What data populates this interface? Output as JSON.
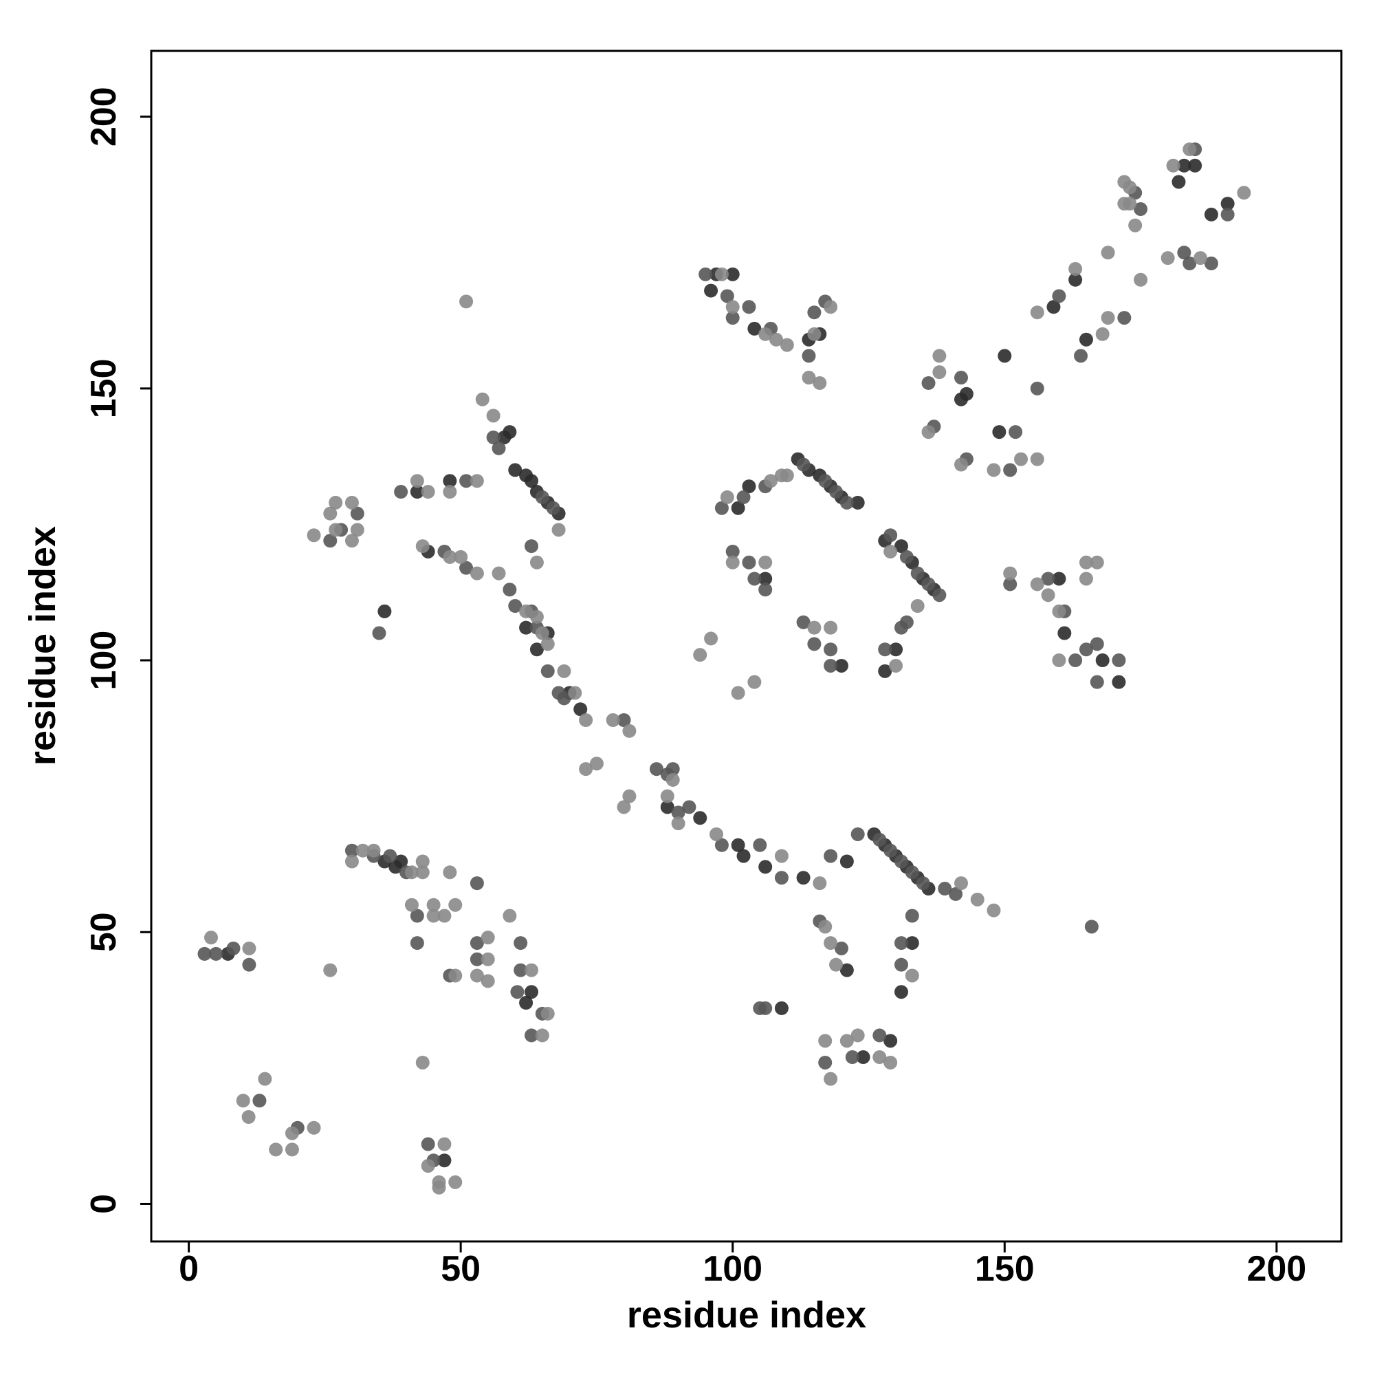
{
  "chart_data": {
    "type": "scatter",
    "xlabel": "residue index",
    "ylabel": "residue index",
    "xlim": [
      -6.9,
      211.9
    ],
    "ylim": [
      -6.9,
      212.1
    ],
    "xticks": [
      0,
      50,
      100,
      150,
      200
    ],
    "yticks": [
      0,
      50,
      100,
      150,
      200
    ],
    "series": [
      {
        "color": "#2b2b2b",
        "x": [
          7.2,
          47,
          63,
          62,
          38,
          39,
          36,
          44,
          42,
          48,
          59,
          58,
          60,
          62,
          64,
          66,
          68,
          63,
          62,
          64,
          66,
          70,
          72,
          88,
          94,
          101,
          102,
          106,
          113,
          121,
          36,
          97,
          96,
          100,
          104,
          116,
          114,
          112,
          114,
          116,
          118,
          120,
          123,
          101,
          103,
          106,
          120,
          128,
          131,
          133,
          135,
          137,
          130,
          128,
          126,
          128,
          130,
          132,
          134,
          136,
          121,
          133,
          131,
          124,
          129,
          109,
          160,
          161,
          171,
          168,
          143,
          142,
          149,
          150,
          163,
          159,
          165,
          185,
          183,
          191,
          188,
          182
        ],
        "values": [
          46,
          8,
          39,
          37,
          62,
          63,
          63,
          120,
          131,
          133,
          142,
          141,
          135,
          134,
          131,
          129,
          127,
          133,
          106,
          102,
          105,
          94,
          91,
          73,
          71,
          66,
          64,
          62,
          60,
          63,
          109,
          171,
          168,
          171,
          161,
          160,
          159,
          137,
          135,
          134,
          132,
          130,
          129,
          128,
          132,
          115,
          99,
          122,
          121,
          118,
          115,
          113,
          102,
          98,
          68,
          66,
          64,
          62,
          60,
          58,
          43,
          48,
          39,
          27,
          30,
          36,
          115,
          105,
          96,
          100,
          149,
          148,
          142,
          156,
          170,
          165,
          159,
          191,
          191,
          184,
          182,
          188
        ]
      },
      {
        "color": "#565656",
        "x": [
          2.9,
          5,
          8.2,
          11.1,
          13,
          20,
          44,
          45,
          60.4,
          65,
          61,
          63,
          61,
          53,
          53,
          53,
          48,
          42,
          42,
          30,
          34,
          40,
          37,
          86,
          88,
          89,
          90,
          92,
          98,
          105,
          109,
          118,
          80,
          69,
          68,
          66,
          64,
          63,
          60,
          59,
          63,
          57,
          56,
          65,
          67,
          39,
          51,
          47,
          51,
          26,
          28,
          31,
          35,
          95,
          99,
          103,
          100,
          107,
          115,
          117,
          114,
          113,
          117,
          119,
          121,
          98,
          102,
          106,
          100,
          103,
          104,
          106,
          113,
          115,
          118,
          118,
          129,
          132,
          134,
          136,
          138,
          132,
          131,
          128,
          123,
          127,
          129,
          131,
          133,
          135,
          139,
          141,
          116,
          120,
          133,
          131,
          131,
          122,
          117,
          127,
          105,
          106,
          151,
          158,
          161,
          163,
          165,
          167,
          167,
          171,
          166,
          136,
          137,
          142,
          143,
          152,
          151,
          156,
          160,
          164,
          172,
          174,
          175,
          183,
          184,
          188,
          191,
          185
        ],
        "values": [
          46,
          46,
          47,
          44,
          19,
          14,
          11,
          8,
          39,
          35,
          43,
          31,
          48,
          48,
          45,
          59,
          42,
          48,
          53,
          65,
          64,
          61,
          64,
          80,
          79,
          80,
          72,
          73,
          66,
          66,
          60,
          64,
          89,
          93,
          94,
          98,
          106,
          109,
          110,
          113,
          121,
          139,
          141,
          130,
          128,
          131,
          133,
          120,
          117,
          122,
          124,
          127,
          105,
          171,
          167,
          165,
          163,
          161,
          164,
          166,
          156,
          136,
          133,
          131,
          129,
          128,
          130,
          132,
          120,
          118,
          115,
          113,
          107,
          103,
          102,
          99,
          123,
          119,
          116,
          114,
          112,
          107,
          106,
          102,
          68,
          67,
          65,
          63,
          61,
          59,
          58,
          57,
          52,
          47,
          53,
          48,
          44,
          27,
          26,
          31,
          36,
          36,
          114,
          115,
          109,
          100,
          102,
          103,
          96,
          100,
          51,
          151,
          143,
          152,
          137,
          142,
          135,
          150,
          167,
          156,
          163,
          186,
          183,
          175,
          173,
          173,
          182,
          194
        ]
      },
      {
        "color": "#888888",
        "x": [
          4.1,
          11.1,
          10,
          11,
          14,
          16,
          19,
          19,
          23,
          26,
          47,
          44,
          46,
          49,
          46,
          43,
          66,
          65,
          63,
          59,
          55,
          55,
          53,
          55,
          49,
          48,
          41,
          45,
          49,
          47,
          45,
          43,
          32,
          30,
          34,
          41,
          43,
          88,
          89,
          90,
          97,
          109,
          116,
          73,
          75,
          80,
          81,
          81,
          78,
          73,
          71,
          69,
          65,
          62,
          64,
          57,
          64,
          66,
          68,
          56,
          54,
          42,
          44,
          48,
          53,
          43,
          48,
          50,
          53,
          23,
          27,
          30,
          31,
          30,
          27,
          26,
          51,
          98,
          100,
          108,
          110,
          106,
          118,
          115,
          114,
          116,
          110,
          109,
          107,
          99,
          100,
          106,
          115,
          118,
          94,
          96,
          101,
          104,
          129,
          134,
          130,
          142,
          145,
          148,
          117,
          118,
          119,
          133,
          117,
          121,
          123,
          127,
          129,
          118,
          151,
          156,
          158,
          160,
          160,
          165,
          167,
          165,
          138,
          138,
          136,
          142,
          153,
          156,
          148,
          156,
          163,
          168,
          169,
          169,
          175,
          172,
          173,
          173,
          174,
          172,
          180,
          186,
          181,
          194,
          184
        ],
        "values": [
          49,
          47,
          19,
          16,
          23,
          10,
          10,
          13,
          14,
          43,
          11,
          7,
          4,
          4,
          3,
          26,
          35,
          31,
          43,
          53,
          49,
          45,
          42,
          41,
          42,
          61,
          55,
          55,
          55,
          53,
          53,
          63,
          65,
          63,
          65,
          61,
          61,
          75,
          78,
          70,
          68,
          64,
          59,
          80,
          81,
          73,
          75,
          87,
          89,
          89,
          94,
          98,
          105,
          109,
          108,
          116,
          118,
          103,
          124,
          145,
          148,
          133,
          131,
          131,
          133,
          121,
          119,
          119,
          116,
          123,
          124,
          122,
          124,
          129,
          129,
          127,
          166,
          171,
          165,
          159,
          158,
          160,
          165,
          160,
          152,
          151,
          134,
          134,
          133,
          130,
          118,
          118,
          106,
          106,
          101,
          104,
          94,
          96,
          120,
          110,
          99,
          59,
          56,
          54,
          51,
          48,
          44,
          42,
          30,
          30,
          31,
          27,
          26,
          23,
          116,
          114,
          112,
          109,
          100,
          118,
          118,
          115,
          153,
          156,
          142,
          136,
          137,
          137,
          135,
          164,
          172,
          160,
          163,
          175,
          170,
          188,
          187,
          184,
          180,
          184,
          174,
          174,
          191,
          186,
          194
        ]
      }
    ]
  }
}
